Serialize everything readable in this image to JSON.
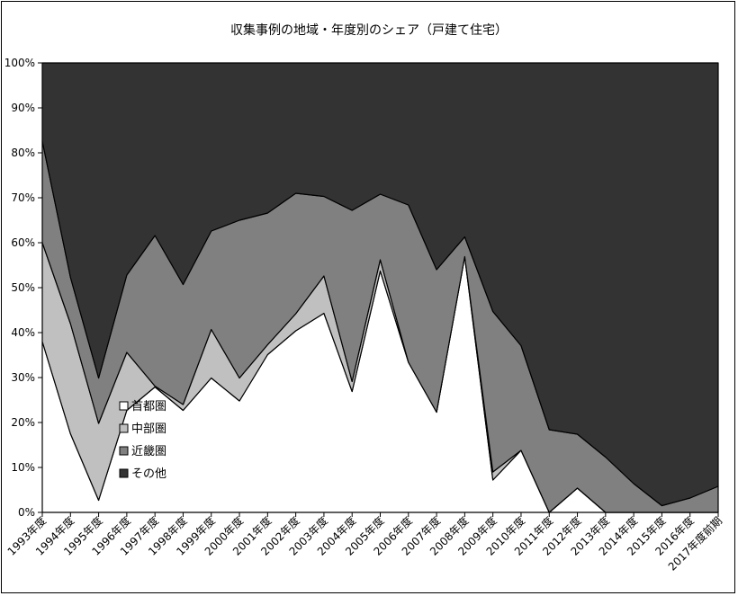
{
  "chart_data": {
    "type": "area",
    "stacked": true,
    "percent": true,
    "title": "収集事例の地域・年度別のシェア（戸建て住宅）",
    "xlabel": "",
    "ylabel": "",
    "ylim": [
      0,
      100
    ],
    "yticks": [
      "0%",
      "10%",
      "20%",
      "30%",
      "40%",
      "50%",
      "60%",
      "70%",
      "80%",
      "90%",
      "100%"
    ],
    "grid": false,
    "legend_position": "lower-left",
    "categories": [
      "1993年度",
      "1994年度",
      "1995年度",
      "1996年度",
      "1997年度",
      "1998年度",
      "1999年度",
      "2000年度",
      "2001年度",
      "2002年度",
      "2003年度",
      "2004年度",
      "2005年度",
      "2006年度",
      "2007年度",
      "2008年度",
      "2009年度",
      "2010年度",
      "2011年度",
      "2012年度",
      "2013年度",
      "2014年度",
      "2015年度",
      "2016年度",
      "2017年度前期"
    ],
    "series": [
      {
        "name": "首都圏",
        "color": "#ffffff",
        "values": [
          38,
          17.5,
          2.7,
          22.7,
          27.9,
          22.7,
          29.9,
          24.8,
          35.1,
          40.4,
          44.3,
          26.9,
          53.7,
          33.4,
          22.3,
          56.9,
          7.2,
          13.8,
          0,
          5.4,
          0,
          0,
          0,
          0,
          0
        ]
      },
      {
        "name": "中部圏",
        "color": "#c0c0c0",
        "values": [
          22,
          24.5,
          17.1,
          12.9,
          0.2,
          1.3,
          10.8,
          5.1,
          2.2,
          3.8,
          8.3,
          2.2,
          2.5,
          0,
          0,
          0,
          1.8,
          0,
          0,
          0,
          0,
          0,
          0,
          0,
          0
        ]
      },
      {
        "name": "近畿圏",
        "color": "#808080",
        "values": [
          22.6,
          10.3,
          10.1,
          17.2,
          33.5,
          26.7,
          21.9,
          35.1,
          29.3,
          26.8,
          17.7,
          38.1,
          14.6,
          35,
          31.7,
          4.4,
          35.7,
          23.3,
          18.4,
          12,
          12.3,
          6.4,
          1.5,
          3.2,
          5.8
        ]
      },
      {
        "name": "その他",
        "color": "#333333",
        "values": [
          17.4,
          47.7,
          70.1,
          47.2,
          38.4,
          49.3,
          37.4,
          35,
          33.4,
          29,
          29.7,
          32.8,
          29.2,
          31.6,
          46,
          38.7,
          55.3,
          62.9,
          81.6,
          82.6,
          87.7,
          93.6,
          98.5,
          96.8,
          94.2
        ]
      }
    ]
  }
}
